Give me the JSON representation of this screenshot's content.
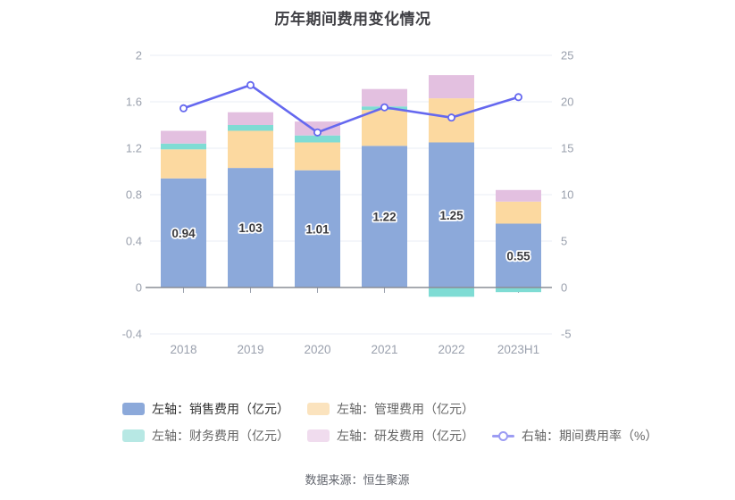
{
  "title": "历年期间费用变化情况",
  "source": "数据来源：恒生聚源",
  "chart_data": {
    "type": "bar",
    "subtype": "stacked-bar-with-line",
    "categories": [
      "2018",
      "2019",
      "2020",
      "2021",
      "2022",
      "2023H1"
    ],
    "series": [
      {
        "name": "左轴：销售费用（亿元）",
        "type": "bar",
        "color": "#8CA9DA",
        "values": [
          0.94,
          1.03,
          1.01,
          1.22,
          1.25,
          0.55
        ],
        "labeled": true,
        "data_labels": [
          "0.94",
          "1.03",
          "1.01",
          "1.22",
          "1.25",
          "0.55"
        ]
      },
      {
        "name": "左轴：管理费用（亿元）",
        "type": "bar",
        "color": "#FCD9A0",
        "values": [
          0.25,
          0.32,
          0.24,
          0.31,
          0.38,
          0.19
        ]
      },
      {
        "name": "左轴：财务费用（亿元）",
        "type": "bar",
        "color": "#7FDCD4",
        "values": [
          0.05,
          0.05,
          0.06,
          0.03,
          -0.08,
          -0.04
        ]
      },
      {
        "name": "左轴：研发费用（亿元）",
        "type": "bar",
        "color": "#E3C0E0",
        "values": [
          0.11,
          0.11,
          0.12,
          0.15,
          0.2,
          0.1
        ]
      },
      {
        "name": "右轴：期间费用率（%）",
        "type": "line",
        "color": "#6568EF",
        "values": [
          19.3,
          21.8,
          16.7,
          19.4,
          18.3,
          20.5
        ]
      }
    ],
    "left_axis": {
      "ticks": [
        "2",
        "1.6",
        "1.2",
        "0.8",
        "0.4",
        "0",
        "-0.4"
      ],
      "tick_values": [
        2,
        1.6,
        1.2,
        0.8,
        0.4,
        0,
        -0.4
      ],
      "range": [
        -0.4,
        2
      ]
    },
    "right_axis": {
      "ticks": [
        "25",
        "20",
        "15",
        "10",
        "5",
        "0",
        "-5"
      ],
      "tick_values": [
        25,
        20,
        15,
        10,
        5,
        0,
        -5
      ],
      "range": [
        -5,
        25
      ]
    },
    "grid": true,
    "legend_position": "bottom"
  },
  "legend": {
    "items": [
      {
        "label": "左轴：销售费用（亿元）",
        "type": "bar",
        "color": "#8CA9DA",
        "text_color": "#333333"
      },
      {
        "label": "左轴：管理费用（亿元）",
        "type": "bar",
        "color": "#FBE3BE",
        "text_color": "#666666"
      },
      {
        "label": "左轴：财务费用（亿元）",
        "type": "bar",
        "color": "#B7E8E4",
        "text_color": "#666666"
      },
      {
        "label": "左轴：研发费用（亿元）",
        "type": "bar",
        "color": "#F0DCEE",
        "text_color": "#666666"
      },
      {
        "label": "右轴：期间费用率（%）",
        "type": "line",
        "color": "#9C9CF3",
        "text_color": "#666666"
      }
    ]
  },
  "style_colors": {
    "grid_line": "#E9ECF5",
    "zero_axis_line": "#8A8D96",
    "axis_tick": "#9AA0AD",
    "axis_label": "#9AA0AD",
    "bar_value_label": "#3A3A3E",
    "bar_value_halo": "#FFFFFF"
  }
}
